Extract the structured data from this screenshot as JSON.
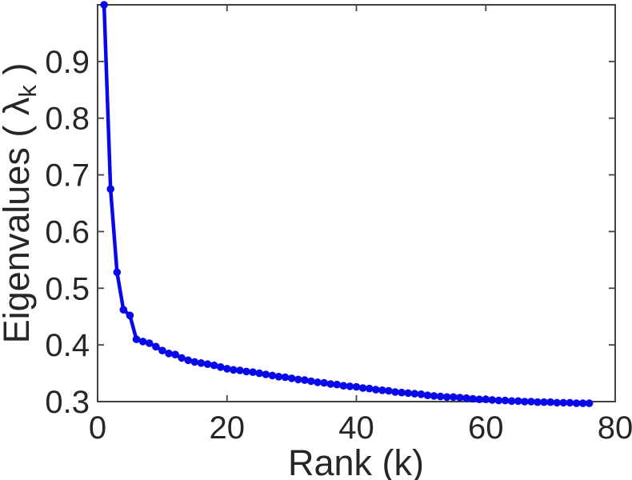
{
  "figure": {
    "background_color": "#ffffff",
    "ylabel_main": "Eigenvalues ( λ",
    "ylabel_sub": "k",
    "ylabel_close": " )"
  },
  "chart_data": {
    "type": "line",
    "title": "",
    "xlabel": "Rank (k)",
    "ylabel": "Eigenvalues ( λ_k )",
    "x_start": 1,
    "x_step": 1,
    "n_points": 76,
    "values": [
      1.0,
      0.675,
      0.528,
      0.462,
      0.452,
      0.41,
      0.406,
      0.403,
      0.397,
      0.39,
      0.385,
      0.383,
      0.377,
      0.373,
      0.37,
      0.368,
      0.366,
      0.364,
      0.361,
      0.358,
      0.356,
      0.355,
      0.353,
      0.352,
      0.35,
      0.348,
      0.346,
      0.344,
      0.343,
      0.341,
      0.339,
      0.338,
      0.336,
      0.334,
      0.333,
      0.331,
      0.33,
      0.328,
      0.327,
      0.326,
      0.324,
      0.323,
      0.321,
      0.32,
      0.319,
      0.317,
      0.316,
      0.315,
      0.314,
      0.313,
      0.311,
      0.31,
      0.309,
      0.308,
      0.308,
      0.307,
      0.306,
      0.305,
      0.304,
      0.304,
      0.303,
      0.302,
      0.302,
      0.301,
      0.301,
      0.3,
      0.3,
      0.299,
      0.299,
      0.299,
      0.298,
      0.298,
      0.298,
      0.297,
      0.297,
      0.297
    ],
    "xlim": [
      0,
      80
    ],
    "ylim": [
      0.3,
      1.0
    ],
    "xticks": [
      0,
      20,
      40,
      60,
      80
    ],
    "yticks": [
      0.3,
      0.4,
      0.5,
      0.6,
      0.7,
      0.8,
      0.9
    ],
    "grid": false,
    "legend": null,
    "box": true,
    "tick_direction": "in",
    "line_color": "#0808e8",
    "marker": "filled-circle",
    "axis_color": "#424242",
    "text_color": "#262626"
  }
}
